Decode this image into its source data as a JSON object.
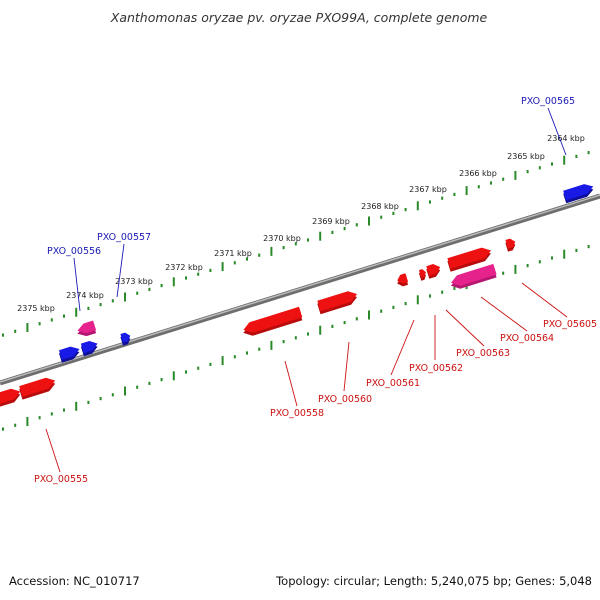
{
  "title": "Xanthomonas oryzae pv. oryzae PXO99A, complete genome",
  "footer": {
    "accession": "Accession: NC_010717",
    "summary": "Topology: circular; Length: 5,240,075 bp; Genes: 5,048"
  },
  "colors": {
    "forward_gene": "#1a1ae6",
    "reverse_gene": "#ee1111",
    "rna_gene": "#e6228c",
    "backbone": "#888888",
    "ticks": "#2a8a2a",
    "forward_label": "#1a1ab4",
    "reverse_label": "#cc1111"
  },
  "ruler": {
    "unit": "kbp",
    "labels": [
      "2364 kbp",
      "2365 kbp",
      "2366 kbp",
      "2367 kbp",
      "2368 kbp",
      "2369 kbp",
      "2370 kbp",
      "2371 kbp",
      "2372 kbp",
      "2373 kbp",
      "2374 kbp",
      "2375 kbp"
    ]
  },
  "gene_labels": [
    {
      "id": "PXO_00565",
      "strand": "forward"
    },
    {
      "id": "PXO_00557",
      "strand": "forward"
    },
    {
      "id": "PXO_00556",
      "strand": "forward"
    },
    {
      "id": "PXO_05605",
      "strand": "reverse"
    },
    {
      "id": "PXO_00564",
      "strand": "reverse"
    },
    {
      "id": "PXO_00563",
      "strand": "reverse"
    },
    {
      "id": "PXO_00562",
      "strand": "reverse"
    },
    {
      "id": "PXO_00561",
      "strand": "reverse"
    },
    {
      "id": "PXO_00560",
      "strand": "reverse"
    },
    {
      "id": "PXO_00558",
      "strand": "reverse"
    },
    {
      "id": "PXO_00555",
      "strand": "reverse"
    }
  ]
}
